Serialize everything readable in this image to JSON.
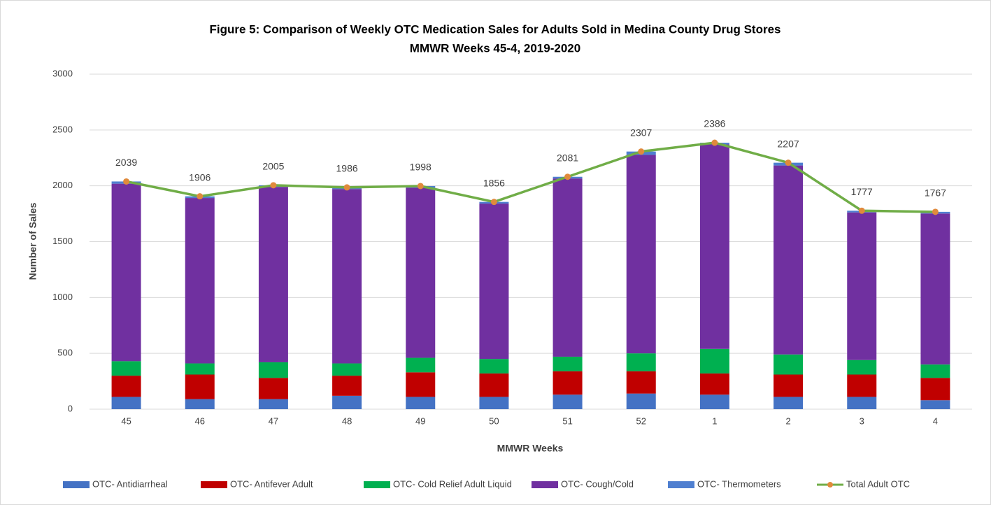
{
  "chart_data": {
    "type": "bar",
    "title": "Figure 5: Comparison of Weekly OTC Medication Sales for Adults Sold in Medina County Drug Stores",
    "subtitle": "MMWR Weeks 45-4, 2019-2020",
    "x_label": "MMWR Weeks",
    "y_label": "Number of Sales",
    "categories": [
      "45",
      "46",
      "47",
      "48",
      "49",
      "50",
      "51",
      "52",
      "1",
      "2",
      "3",
      "4"
    ],
    "ylim": [
      0,
      3000
    ],
    "yticks": [
      0,
      500,
      1000,
      1500,
      2000,
      2500,
      3000
    ],
    "grid": true,
    "stacked": true,
    "legend": "bottom",
    "series": [
      {
        "name": "OTC- Antidiarrheal",
        "color": "#4472c4",
        "values": [
          110,
          90,
          90,
          120,
          110,
          110,
          130,
          140,
          130,
          110,
          110,
          80
        ]
      },
      {
        "name": "OTC- Antifever Adult",
        "color": "#c00000",
        "values": [
          190,
          220,
          190,
          180,
          220,
          210,
          210,
          200,
          190,
          200,
          200,
          200
        ]
      },
      {
        "name": "OTC- Cold Relief Adult Liquid",
        "color": "#00b050",
        "values": [
          130,
          100,
          140,
          110,
          130,
          130,
          130,
          160,
          220,
          180,
          130,
          120
        ]
      },
      {
        "name": "OTC- Cough/Cold",
        "color": "#7030a0",
        "values": [
          1589,
          1481,
          1570,
          1561,
          1523,
          1391,
          1596,
          1777,
          1831,
          1692,
          1322,
          1352
        ]
      },
      {
        "name": "OTC- Thermometers",
        "color": "#4f7fd0",
        "values": [
          20,
          15,
          15,
          15,
          15,
          15,
          15,
          30,
          15,
          25,
          15,
          15
        ]
      },
      {
        "name": "Total Adult OTC",
        "type": "line",
        "color": "#70ad47",
        "marker_color": "#e08a3c",
        "values": [
          2039,
          1906,
          2005,
          1986,
          1998,
          1856,
          2081,
          2307,
          2386,
          2207,
          1777,
          1767
        ]
      }
    ]
  }
}
